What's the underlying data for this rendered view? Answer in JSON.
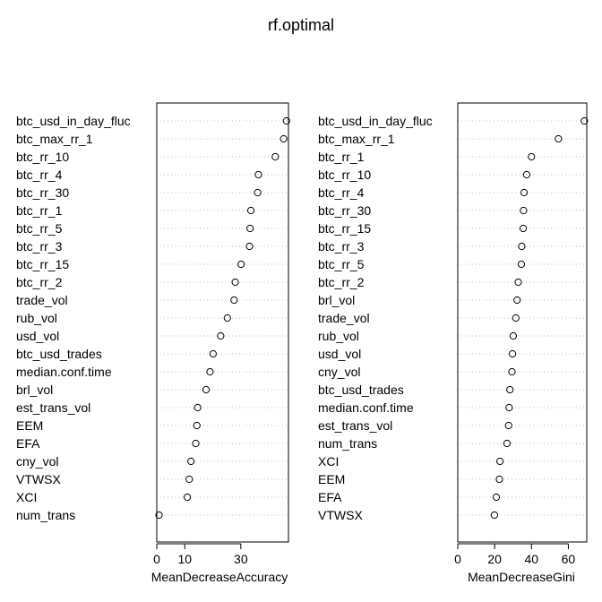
{
  "title": "rf.optimal",
  "chart_data": [
    {
      "type": "scatter",
      "subtype": "dotchart",
      "xlabel": "MeanDecreaseAccuracy",
      "ylabel": "",
      "xlim": [
        0,
        47
      ],
      "xticks": [
        0,
        10,
        30
      ],
      "grid": "dotted horizontal lines",
      "categories": [
        "btc_usd_in_day_fluc",
        "btc_max_rr_1",
        "btc_rr_10",
        "btc_rr_4",
        "btc_rr_30",
        "btc_rr_1",
        "btc_rr_5",
        "btc_rr_3",
        "btc_rr_15",
        "btc_rr_2",
        "trade_vol",
        "rub_vol",
        "usd_vol",
        "btc_usd_trades",
        "median.conf.time",
        "brl_vol",
        "est_trans_vol",
        "EEM",
        "EFA",
        "cny_vol",
        "VTWSX",
        "XCI",
        "num_trans"
      ],
      "values": [
        46.3,
        45.3,
        42.3,
        36.3,
        36.0,
        33.6,
        33.3,
        33.1,
        30.1,
        28.0,
        27.6,
        25.2,
        22.8,
        20.1,
        19.0,
        17.6,
        14.6,
        14.3,
        13.9,
        12.2,
        11.6,
        10.9,
        0.8
      ]
    },
    {
      "type": "scatter",
      "subtype": "dotchart",
      "xlabel": "MeanDecreaseGini",
      "ylabel": "",
      "xlim": [
        0,
        70
      ],
      "xticks": [
        0,
        20,
        40,
        60
      ],
      "grid": "dotted horizontal lines",
      "categories": [
        "btc_usd_in_day_fluc",
        "btc_max_rr_1",
        "btc_rr_1",
        "btc_rr_10",
        "btc_rr_4",
        "btc_rr_30",
        "btc_rr_15",
        "btc_rr_3",
        "btc_rr_5",
        "btc_rr_2",
        "brl_vol",
        "trade_vol",
        "rub_vol",
        "usd_vol",
        "cny_vol",
        "btc_usd_trades",
        "median.conf.time",
        "est_trans_vol",
        "num_trans",
        "XCI",
        "EEM",
        "EFA",
        "VTWSX"
      ],
      "values": [
        68.7,
        54.6,
        40.0,
        37.4,
        36.0,
        35.7,
        35.5,
        34.7,
        34.5,
        32.8,
        32.2,
        31.5,
        30.1,
        29.7,
        29.4,
        28.3,
        27.9,
        27.6,
        26.7,
        22.9,
        22.6,
        20.9,
        19.9
      ]
    }
  ]
}
